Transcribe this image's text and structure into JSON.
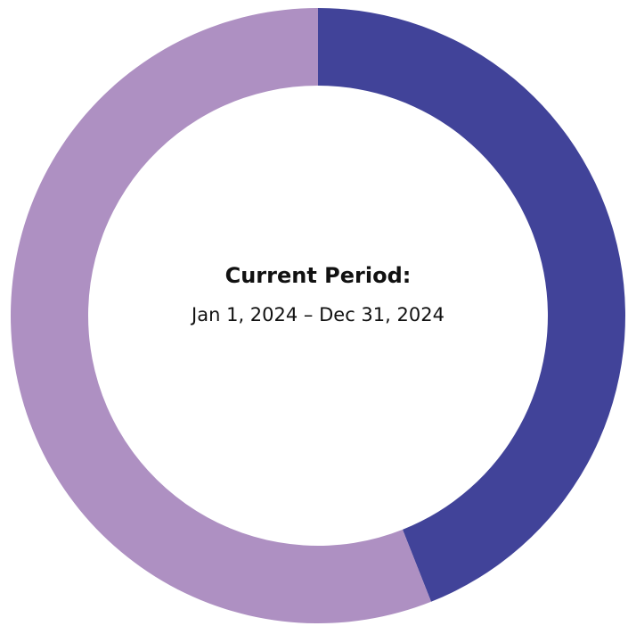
{
  "chart_data": {
    "type": "donut",
    "title": "Current Period:",
    "subtitle": "Jan 1, 2024 – Dec 31, 2024",
    "values": [
      44,
      56
    ],
    "colors": [
      "#414399",
      "#ae90c2"
    ]
  }
}
